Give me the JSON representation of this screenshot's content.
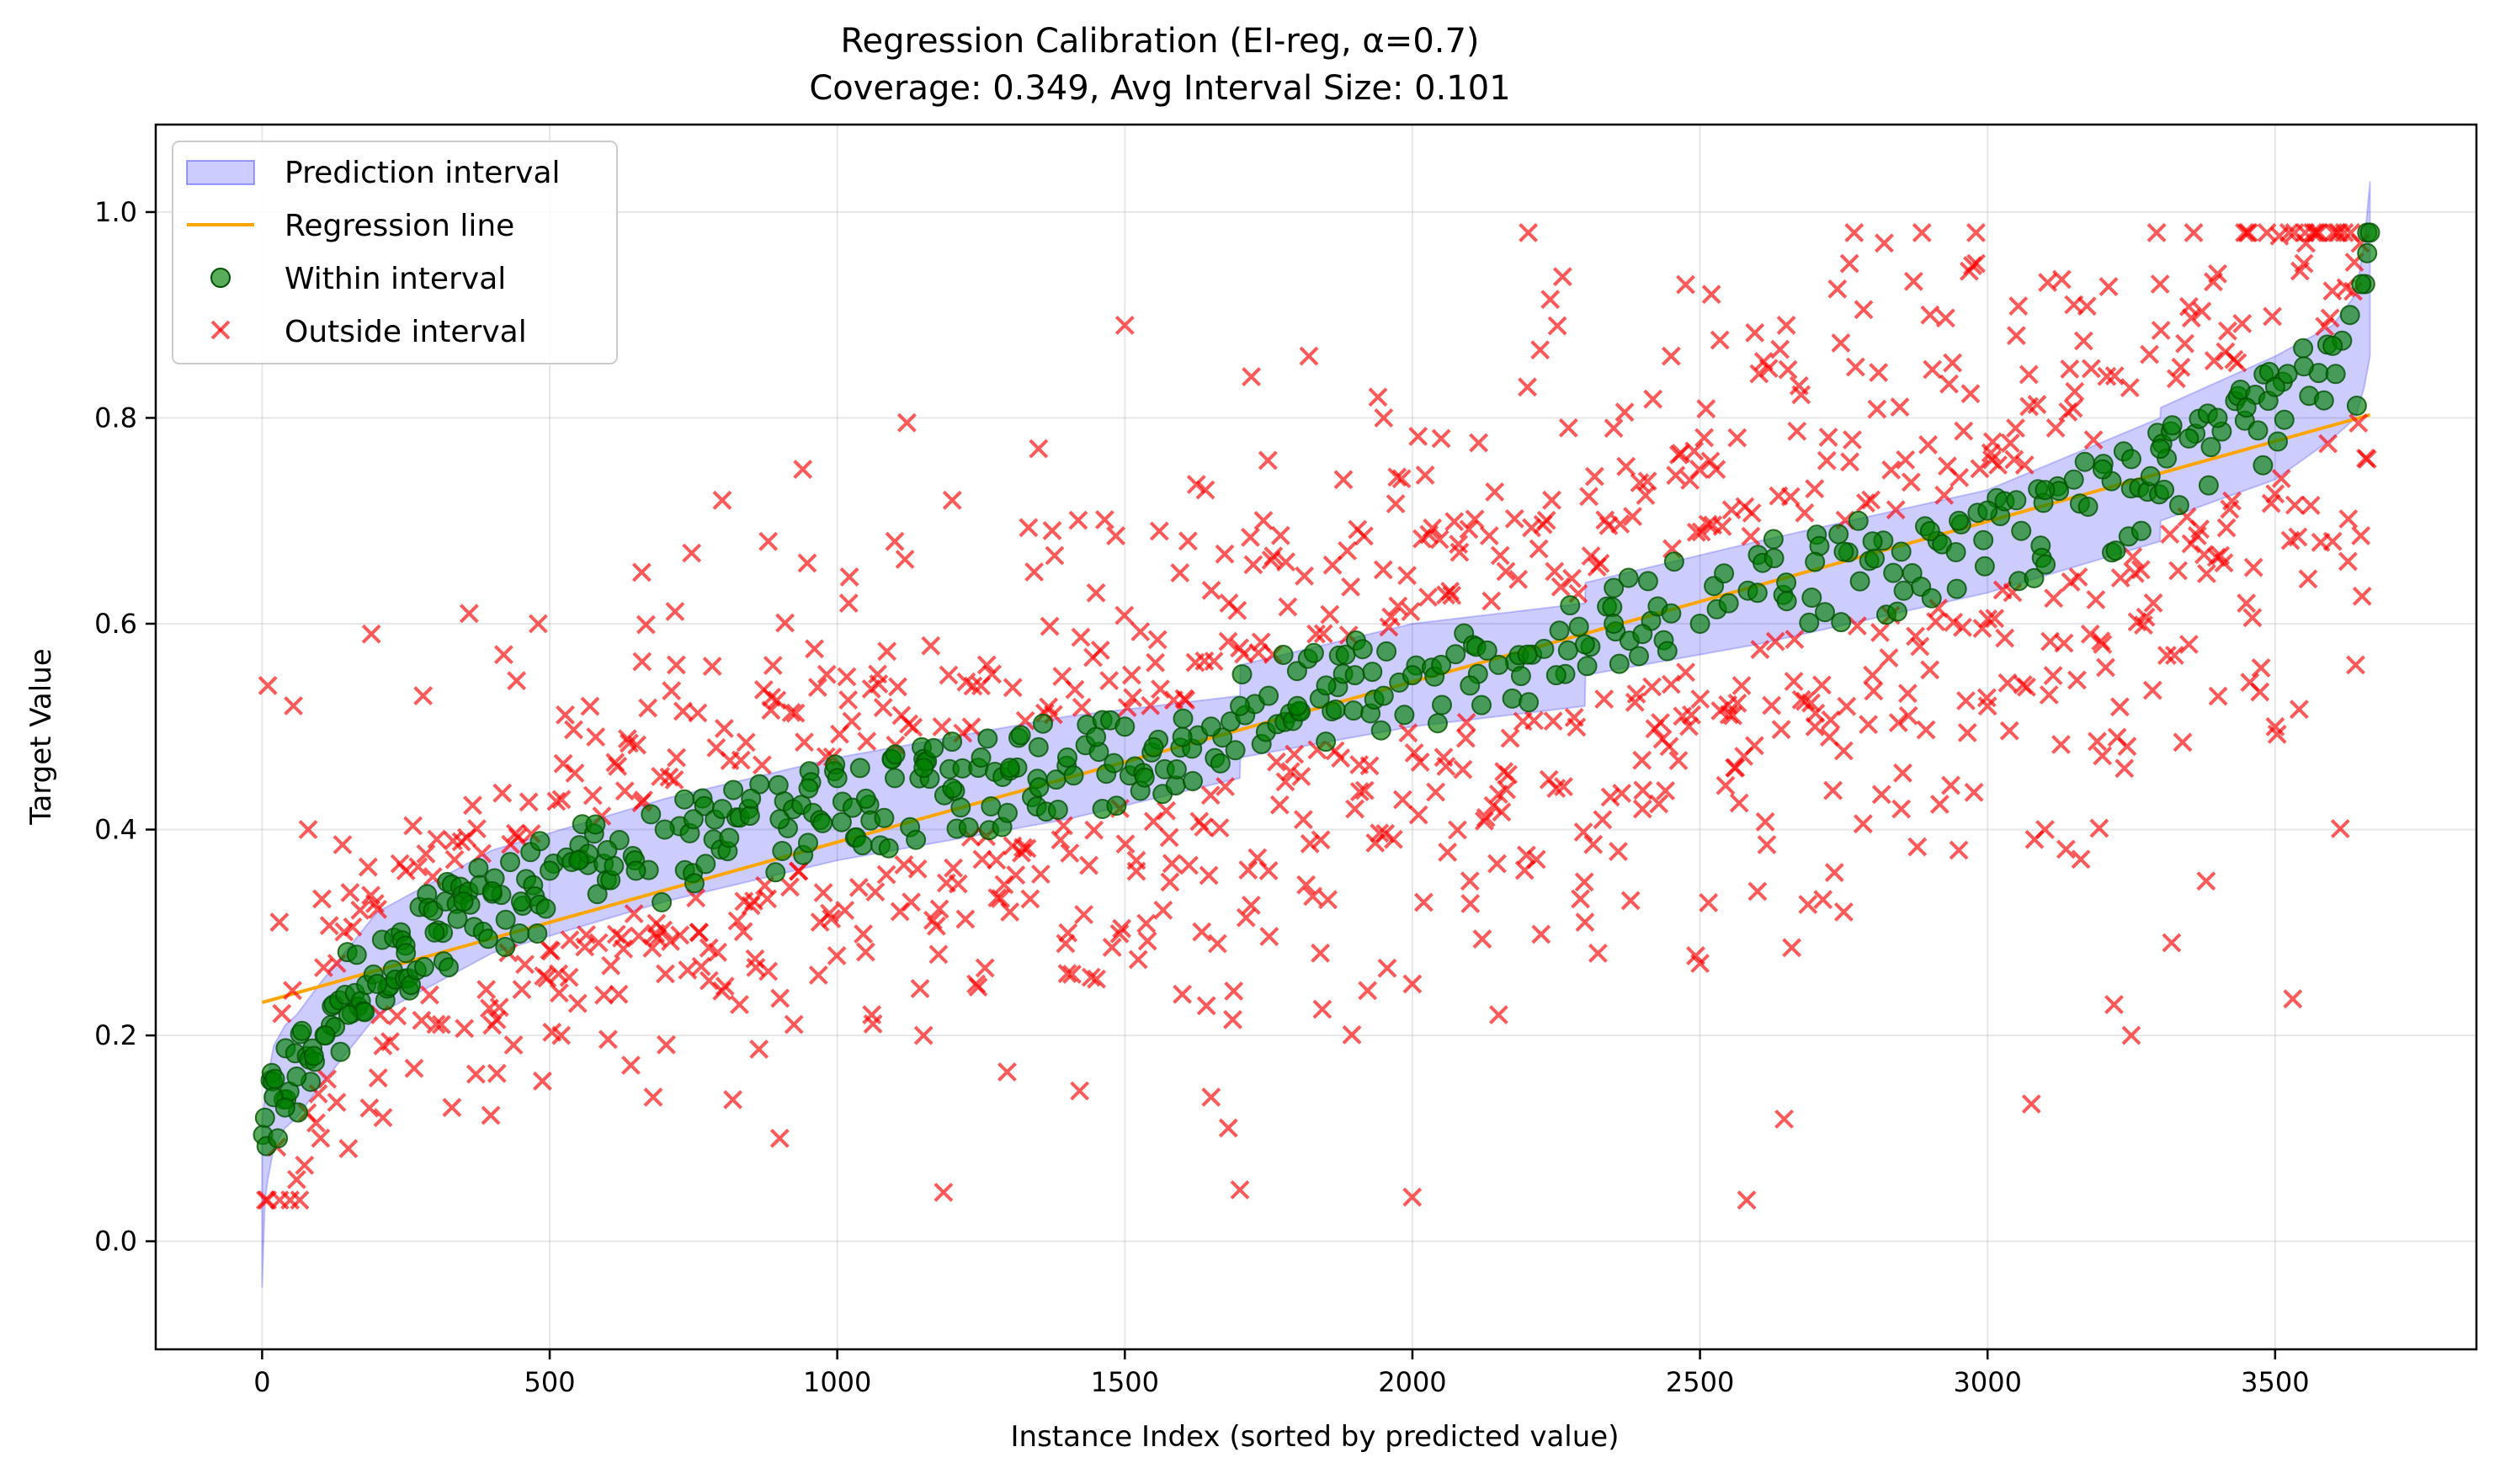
{
  "chart_data": {
    "type": "scatter",
    "title": "Regression Calibration (EI-reg, α=0.7)",
    "subtitle": "Coverage: 0.349, Avg Interval Size: 0.101",
    "xlabel": "Instance Index (sorted by predicted value)",
    "ylabel": "Target Value",
    "xlim": [
      -185,
      3850
    ],
    "ylim": [
      -0.105,
      1.085
    ],
    "xticks": [
      0,
      500,
      1000,
      1500,
      2000,
      2500,
      3000,
      3500
    ],
    "yticks": [
      0.0,
      0.2,
      0.4,
      0.6,
      0.8,
      1.0
    ],
    "grid": true,
    "legend_position": "upper-left",
    "n_points": 3665,
    "regression_line": {
      "x": [
        0,
        3665
      ],
      "y": [
        0.232,
        0.803
      ]
    },
    "interval_band": {
      "x": [
        0,
        5,
        10,
        20,
        40,
        60,
        100,
        200,
        400,
        700,
        1000,
        1400,
        1700,
        1701,
        2000,
        2300,
        2301,
        2600,
        3000,
        3300,
        3301,
        3500,
        3600,
        3640,
        3655,
        3665
      ],
      "lower": [
        -0.045,
        0.04,
        0.06,
        0.09,
        0.11,
        0.12,
        0.15,
        0.22,
        0.28,
        0.33,
        0.37,
        0.41,
        0.45,
        0.47,
        0.5,
        0.52,
        0.55,
        0.58,
        0.63,
        0.68,
        0.7,
        0.74,
        0.78,
        0.8,
        0.83,
        0.86
      ],
      "upper": [
        0.12,
        0.14,
        0.16,
        0.19,
        0.21,
        0.22,
        0.25,
        0.32,
        0.38,
        0.43,
        0.47,
        0.51,
        0.53,
        0.56,
        0.6,
        0.62,
        0.64,
        0.68,
        0.73,
        0.8,
        0.81,
        0.86,
        0.89,
        0.92,
        0.97,
        1.03
      ]
    },
    "series": [
      {
        "name": "Prediction interval",
        "kind": "band",
        "color": "#0000ff",
        "opacity": 0.2
      },
      {
        "name": "Regression line",
        "kind": "line",
        "color": "#ffa500"
      },
      {
        "name": "Within interval",
        "kind": "marker-circle",
        "color": "#008000",
        "opacity": 0.65,
        "points": [
          [
            5,
            0.12
          ],
          [
            20,
            0.14
          ],
          [
            40,
            0.13
          ],
          [
            60,
            0.16
          ],
          [
            90,
            0.18
          ],
          [
            110,
            0.2
          ],
          [
            150,
            0.22
          ],
          [
            200,
            0.25
          ],
          [
            250,
            0.28
          ],
          [
            300,
            0.3
          ],
          [
            350,
            0.33
          ],
          [
            400,
            0.34
          ],
          [
            450,
            0.33
          ],
          [
            500,
            0.36
          ],
          [
            550,
            0.37
          ],
          [
            600,
            0.38
          ],
          [
            650,
            0.36
          ],
          [
            700,
            0.4
          ],
          [
            750,
            0.41
          ],
          [
            800,
            0.42
          ],
          [
            850,
            0.43
          ],
          [
            900,
            0.41
          ],
          [
            950,
            0.44
          ],
          [
            1000,
            0.45
          ],
          [
            1050,
            0.43
          ],
          [
            1100,
            0.45
          ],
          [
            1150,
            0.46
          ],
          [
            1200,
            0.44
          ],
          [
            1250,
            0.47
          ],
          [
            1300,
            0.46
          ],
          [
            1350,
            0.48
          ],
          [
            1400,
            0.47
          ],
          [
            1450,
            0.49
          ],
          [
            1500,
            0.5
          ],
          [
            1550,
            0.48
          ],
          [
            1600,
            0.49
          ],
          [
            1650,
            0.5
          ],
          [
            1700,
            0.52
          ],
          [
            1750,
            0.53
          ],
          [
            1800,
            0.52
          ],
          [
            1850,
            0.54
          ],
          [
            1900,
            0.55
          ],
          [
            1950,
            0.53
          ],
          [
            2000,
            0.55
          ],
          [
            2050,
            0.56
          ],
          [
            2100,
            0.54
          ],
          [
            2150,
            0.56
          ],
          [
            2200,
            0.57
          ],
          [
            2250,
            0.55
          ],
          [
            2300,
            0.58
          ],
          [
            2350,
            0.6
          ],
          [
            2400,
            0.59
          ],
          [
            2450,
            0.61
          ],
          [
            2500,
            0.6
          ],
          [
            2550,
            0.62
          ],
          [
            2600,
            0.63
          ],
          [
            2650,
            0.64
          ],
          [
            2700,
            0.66
          ],
          [
            2750,
            0.67
          ],
          [
            2800,
            0.68
          ],
          [
            2850,
            0.67
          ],
          [
            2900,
            0.69
          ],
          [
            2950,
            0.7
          ],
          [
            3000,
            0.71
          ],
          [
            3050,
            0.72
          ],
          [
            3100,
            0.73
          ],
          [
            3150,
            0.74
          ],
          [
            3200,
            0.75
          ],
          [
            3250,
            0.76
          ],
          [
            3300,
            0.77
          ],
          [
            3350,
            0.78
          ],
          [
            3400,
            0.8
          ],
          [
            3450,
            0.81
          ],
          [
            3500,
            0.83
          ],
          [
            3550,
            0.85
          ],
          [
            3600,
            0.87
          ],
          [
            3630,
            0.9
          ],
          [
            3650,
            0.93
          ],
          [
            3660,
            0.96
          ]
        ]
      },
      {
        "name": "Outside interval",
        "kind": "marker-x",
        "color": "#ff0000",
        "opacity": 0.65,
        "points": [
          [
            10,
            0.54
          ],
          [
            30,
            0.31
          ],
          [
            60,
            0.06
          ],
          [
            80,
            0.4
          ],
          [
            130,
            0.27
          ],
          [
            150,
            0.09
          ],
          [
            190,
            0.59
          ],
          [
            210,
            0.19
          ],
          [
            250,
            0.36
          ],
          [
            280,
            0.53
          ],
          [
            330,
            0.13
          ],
          [
            360,
            0.61
          ],
          [
            400,
            0.21
          ],
          [
            420,
            0.57
          ],
          [
            480,
            0.6
          ],
          [
            520,
            0.2
          ],
          [
            580,
            0.49
          ],
          [
            620,
            0.24
          ],
          [
            660,
            0.65
          ],
          [
            680,
            0.14
          ],
          [
            720,
            0.56
          ],
          [
            760,
            0.3
          ],
          [
            800,
            0.72
          ],
          [
            830,
            0.23
          ],
          [
            880,
            0.68
          ],
          [
            900,
            0.1
          ],
          [
            940,
            0.75
          ],
          [
            970,
            0.31
          ],
          [
            1020,
            0.62
          ],
          [
            1060,
            0.22
          ],
          [
            1100,
            0.68
          ],
          [
            1150,
            0.2
          ],
          [
            1200,
            0.72
          ],
          [
            1260,
            0.56
          ],
          [
            1300,
            0.32
          ],
          [
            1350,
            0.77
          ],
          [
            1400,
            0.26
          ],
          [
            1450,
            0.63
          ],
          [
            1500,
            0.89
          ],
          [
            1520,
            0.37
          ],
          [
            1560,
            0.69
          ],
          [
            1600,
            0.24
          ],
          [
            1640,
            0.73
          ],
          [
            1650,
            0.14
          ],
          [
            1680,
            0.11
          ],
          [
            1700,
            0.05
          ],
          [
            1720,
            0.84
          ],
          [
            1750,
            0.36
          ],
          [
            1780,
            0.66
          ],
          [
            1820,
            0.86
          ],
          [
            1840,
            0.28
          ],
          [
            1880,
            0.74
          ],
          [
            1900,
            0.42
          ],
          [
            1950,
            0.8
          ],
          [
            2000,
            0.25
          ],
          [
            2050,
            0.78
          ],
          [
            2100,
            0.35
          ],
          [
            2150,
            0.22
          ],
          [
            2200,
            0.83
          ],
          [
            2250,
            0.44
          ],
          [
            2300,
            0.31
          ],
          [
            2350,
            0.79
          ],
          [
            2400,
            0.42
          ],
          [
            2450,
            0.86
          ],
          [
            2500,
            0.27
          ],
          [
            2520,
            0.92
          ],
          [
            2560,
            0.46
          ],
          [
            2600,
            0.34
          ],
          [
            2650,
            0.89
          ],
          [
            2700,
            0.5
          ],
          [
            2750,
            0.32
          ],
          [
            2760,
            0.95
          ],
          [
            2800,
            0.55
          ],
          [
            2850,
            0.42
          ],
          [
            2900,
            0.9
          ],
          [
            2950,
            0.38
          ],
          [
            2980,
            0.95
          ],
          [
            3000,
            0.52
          ],
          [
            3050,
            0.88
          ],
          [
            3100,
            0.4
          ],
          [
            3150,
            0.91
          ],
          [
            3200,
            0.58
          ],
          [
            3220,
            0.23
          ],
          [
            3250,
            0.2
          ],
          [
            3300,
            0.93
          ],
          [
            3320,
            0.29
          ],
          [
            3350,
            0.58
          ],
          [
            3380,
            0.35
          ],
          [
            3400,
            0.94
          ],
          [
            3450,
            0.62
          ],
          [
            3500,
            0.5
          ],
          [
            3550,
            0.95
          ],
          [
            3600,
            0.68
          ],
          [
            3640,
            0.56
          ],
          [
            3660,
            0.76
          ]
        ]
      }
    ]
  }
}
